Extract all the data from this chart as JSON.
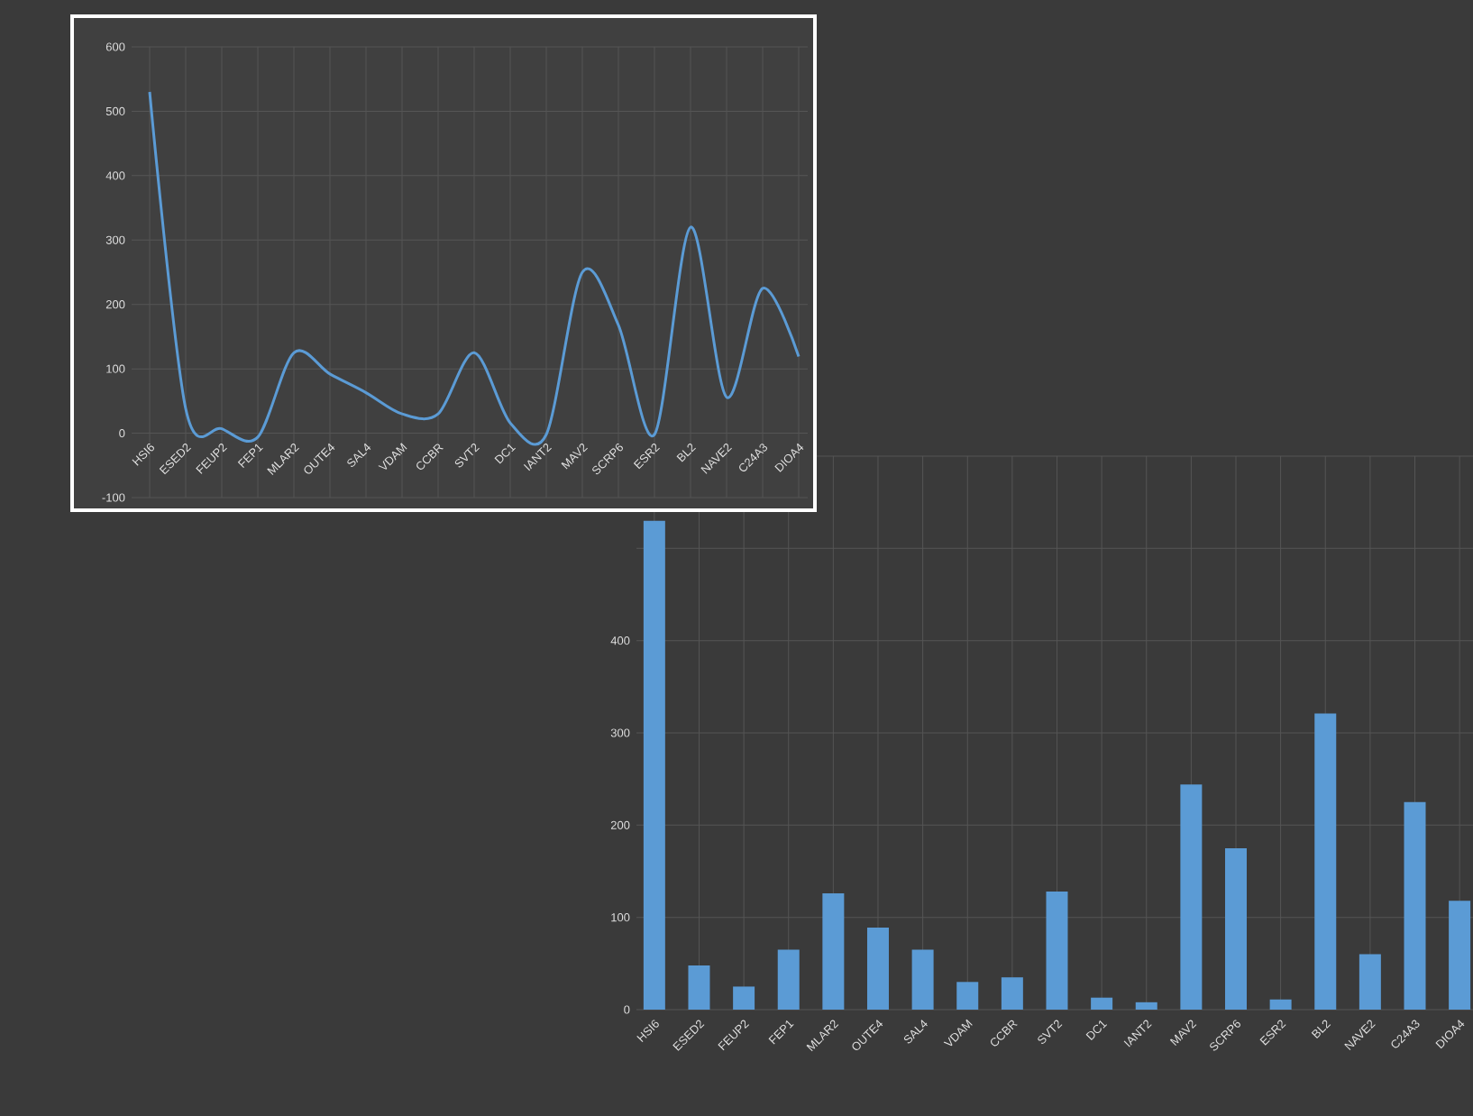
{
  "chart_data": [
    {
      "type": "line",
      "categories": [
        "HSI6",
        "ESED2",
        "FEUP2",
        "FEP1",
        "MLAR2",
        "OUTE4",
        "SAL4",
        "VDAM",
        "CCBR",
        "SVT2",
        "DC1",
        "IANT2",
        "MAV2",
        "SCRP6",
        "ESR2",
        "BL2",
        "NAVE2",
        "C24A3",
        "DIOA4"
      ],
      "values": [
        530,
        38,
        7,
        -6,
        125,
        92,
        63,
        30,
        30,
        125,
        16,
        -2,
        250,
        168,
        -2,
        320,
        56,
        225,
        119
      ],
      "color": "#5b9bd5",
      "marker": "none",
      "grid": true,
      "ylim": [
        -100,
        600
      ],
      "yticks": [
        -100,
        0,
        100,
        200,
        300,
        400,
        500,
        600
      ]
    },
    {
      "type": "bar",
      "categories": [
        "HSI6",
        "ESED2",
        "FEUP2",
        "FEP1",
        "MLAR2",
        "OUTE4",
        "SAL4",
        "VDAM",
        "CCBR",
        "SVT2",
        "DC1",
        "IANT2",
        "MAV2",
        "SCRP6",
        "ESR2",
        "BL2",
        "NAVE2",
        "C24A3",
        "DIOA4"
      ],
      "values": [
        530,
        48,
        25,
        65,
        126,
        89,
        65,
        30,
        35,
        128,
        13,
        8,
        244,
        175,
        11,
        321,
        60,
        225,
        118
      ],
      "color": "#5b9bd5",
      "grid": true,
      "ylim": [
        0,
        600
      ],
      "yticks": [
        0,
        100,
        200,
        300,
        400,
        {
          "value": 500,
          "label": null
        },
        {
          "value": 600,
          "label": null
        }
      ]
    }
  ]
}
